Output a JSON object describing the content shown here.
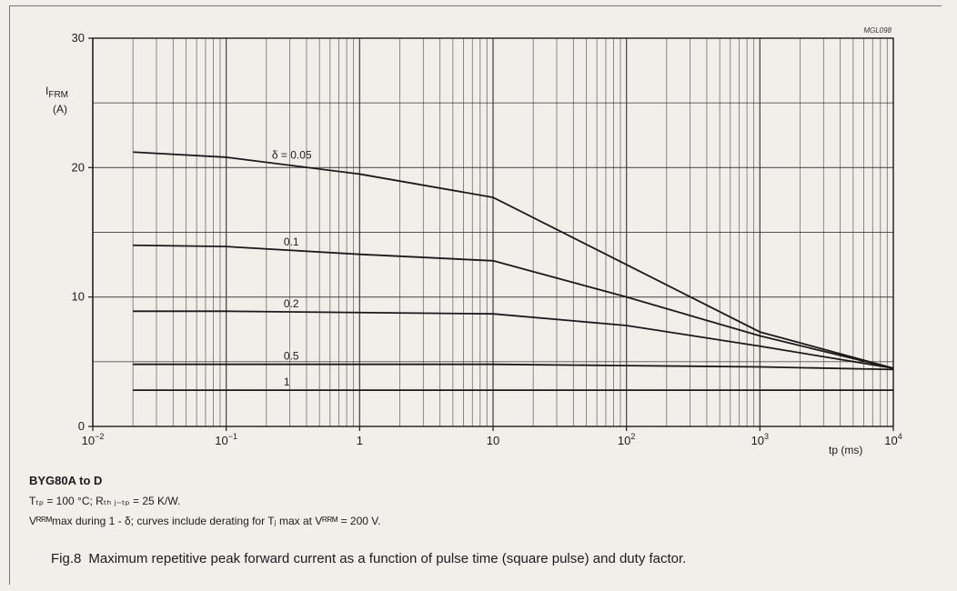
{
  "figure": {
    "code": "MGL098",
    "device": "BYG80A to D",
    "cond1": "Tₜₚ = 100 °C; Rₜₕ ⱼ₋ₜₚ = 25 K/W.",
    "cond2": "Vᴿᴿᴹmax during 1 - δ; curves include derating for Tⱼ max at Vᴿᴿᴹ = 200 V.",
    "fig_number": "Fig.8",
    "fig_caption": "Maximum repetitive peak forward current as a function of pulse time (square pulse) and duty factor."
  },
  "chart_data": {
    "type": "line",
    "x_scale": "log",
    "xlim": [
      0.01,
      10000
    ],
    "ylim": [
      0,
      30
    ],
    "ylabel_main": "I",
    "ylabel_sub": "FRM",
    "ylabel_unit": "(A)",
    "xlabel": "tp (ms)",
    "x_ticks": [
      {
        "value": 0.01,
        "base": "10",
        "exp": "−2"
      },
      {
        "value": 0.1,
        "base": "10",
        "exp": "−1"
      },
      {
        "value": 1,
        "base": "1",
        "exp": ""
      },
      {
        "value": 10,
        "base": "10",
        "exp": ""
      },
      {
        "value": 100,
        "base": "10",
        "exp": "2"
      },
      {
        "value": 1000,
        "base": "10",
        "exp": "3"
      },
      {
        "value": 10000,
        "base": "10",
        "exp": "4"
      }
    ],
    "y_ticks": [
      "0",
      "10",
      "20",
      "30"
    ],
    "grid": true,
    "series": [
      {
        "name": "δ = 0.05",
        "x": [
          0.02,
          0.1,
          1,
          10,
          100,
          1000,
          10000
        ],
        "y": [
          21.2,
          20.8,
          19.5,
          17.7,
          12.5,
          7.3,
          4.5
        ]
      },
      {
        "name": "0.1",
        "x": [
          0.02,
          0.1,
          1,
          10,
          100,
          1000,
          10000
        ],
        "y": [
          14.0,
          13.9,
          13.3,
          12.8,
          10.0,
          7.0,
          4.5
        ]
      },
      {
        "name": "0.2",
        "x": [
          0.02,
          0.1,
          1,
          10,
          100,
          1000,
          10000
        ],
        "y": [
          8.9,
          8.9,
          8.8,
          8.7,
          7.8,
          6.2,
          4.5
        ]
      },
      {
        "name": "0.5",
        "x": [
          0.02,
          0.1,
          1,
          10,
          100,
          1000,
          10000
        ],
        "y": [
          4.8,
          4.8,
          4.8,
          4.8,
          4.7,
          4.6,
          4.4
        ]
      },
      {
        "name": "1",
        "x": [
          0.02,
          0.1,
          1,
          10,
          100,
          1000,
          10000
        ],
        "y": [
          2.8,
          2.8,
          2.8,
          2.8,
          2.8,
          2.8,
          2.8
        ]
      }
    ],
    "colors": {
      "line": "#1a1a1a",
      "grid": "#3a3a3a",
      "background": "#f1efea"
    }
  }
}
